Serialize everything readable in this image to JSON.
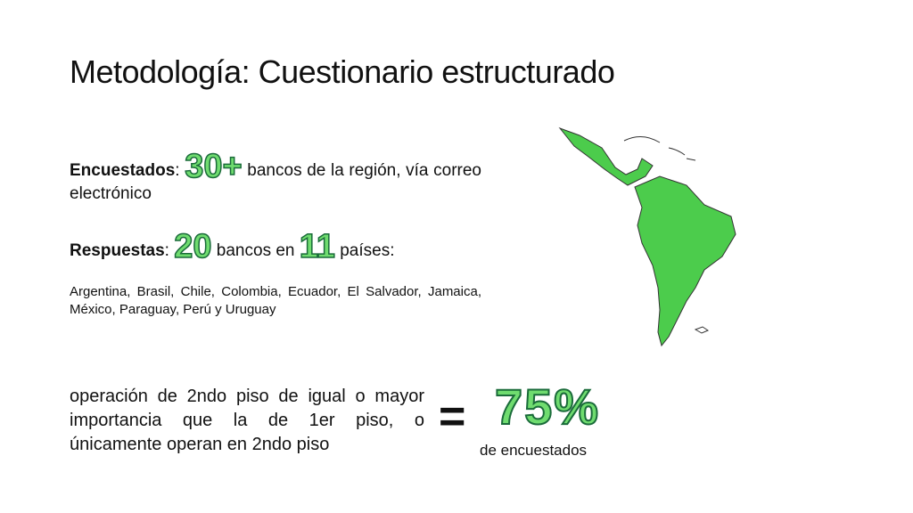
{
  "title": "Metodología: Cuestionario estructurado",
  "respondents": {
    "label": "Encuestados",
    "colon": ":",
    "count": "30+",
    "text": "bancos de la región, vía correo electrónico"
  },
  "responses": {
    "label": "Respuestas",
    "colon": ":",
    "banks": "20",
    "middle": "bancos en",
    "countries": "11",
    "end": "países:"
  },
  "country_list": "Argentina, Brasil, Chile, Colombia, Ecuador, El Salvador, Jamaica, México, Paraguay, Perú y Uruguay",
  "conclusion": {
    "text": "operación de 2ndo piso de igual o mayor importancia que la de 1er piso, o únicamente operan en 2ndo piso",
    "equals": "=",
    "share": "75%",
    "share_caption": "de encuestados"
  }
}
